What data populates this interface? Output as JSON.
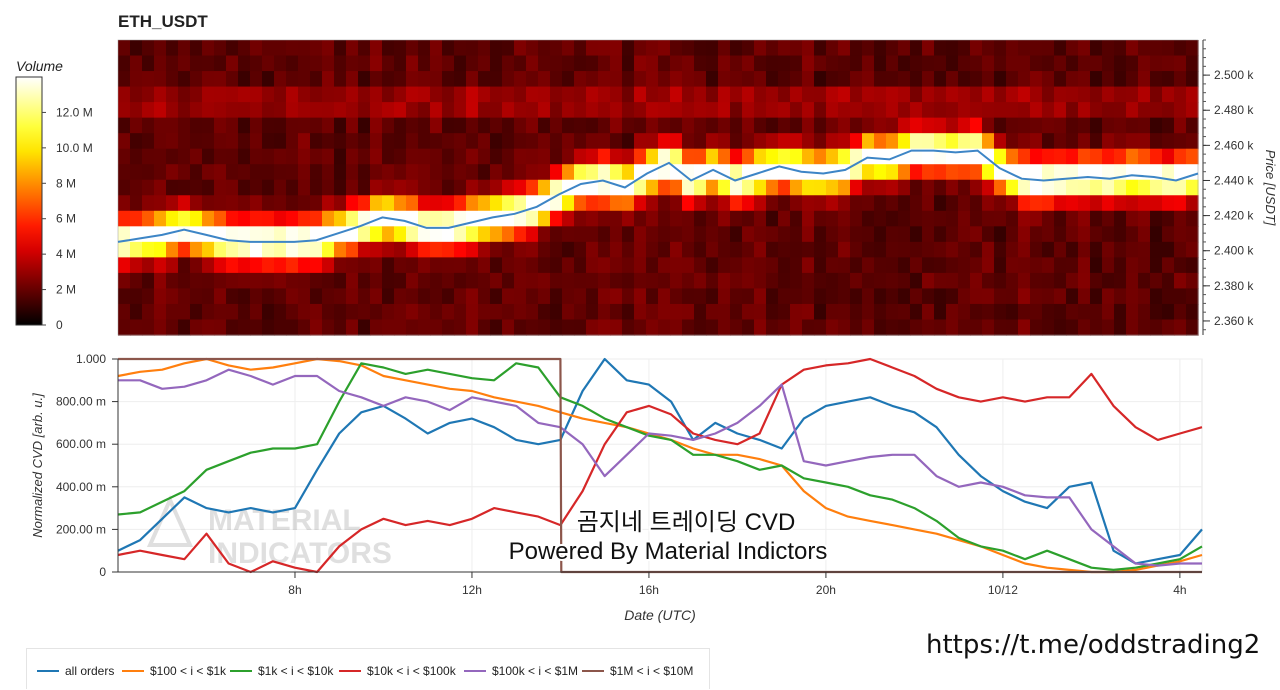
{
  "title": "ETH_USDT",
  "link_text": "https://t.me/oddstrading2",
  "colorbar": {
    "label": "Volume",
    "ticks": [
      {
        "value": 0,
        "label": "0"
      },
      {
        "value": 2,
        "label": "2 M"
      },
      {
        "value": 4,
        "label": "4 M"
      },
      {
        "value": 6,
        "label": "6 M"
      },
      {
        "value": 8,
        "label": "8 M"
      },
      {
        "value": 10,
        "label": "10.0 M"
      },
      {
        "value": 12,
        "label": "12.0 M"
      }
    ],
    "max": 14
  },
  "watermark": {
    "line1": "곰지네 트레이딩 CVD",
    "line2": "Powered By Material Indictors",
    "logo_text_1": "MATERIAL",
    "logo_text_2": "INDICATORS"
  },
  "chart_data": [
    {
      "type": "heatmap",
      "title": "ETH_USDT",
      "ylabel": "Price [USDT]",
      "ylim": [
        2352,
        2520
      ],
      "y_ticks": [
        {
          "value": 2360,
          "label": "2.360 k"
        },
        {
          "value": 2380,
          "label": "2.380 k"
        },
        {
          "value": 2400,
          "label": "2.400 k"
        },
        {
          "value": 2420,
          "label": "2.420 k"
        },
        {
          "value": 2440,
          "label": "2.440 k"
        },
        {
          "value": 2460,
          "label": "2.460 k"
        },
        {
          "value": 2480,
          "label": "2.480 k"
        },
        {
          "value": 2500,
          "label": "2.500 k"
        }
      ],
      "xlim_hours": [
        4,
        28.5
      ],
      "price_line": {
        "color": "#3d85c6",
        "x": [
          4.0,
          4.5,
          5.0,
          5.5,
          6.0,
          6.5,
          7.0,
          7.5,
          8.0,
          8.5,
          9.0,
          9.5,
          10.0,
          10.5,
          11.0,
          11.5,
          12.0,
          12.5,
          13.0,
          13.5,
          14.0,
          14.5,
          15.0,
          15.5,
          16.0,
          16.5,
          17.0,
          17.5,
          18.0,
          18.5,
          19.0,
          19.5,
          20.0,
          20.5,
          21.0,
          21.5,
          22.0,
          22.5,
          23.0,
          23.5,
          24.0,
          24.5,
          25.0,
          25.5,
          26.0,
          26.5,
          27.0,
          27.5,
          28.0,
          28.5
        ],
        "y": [
          2405,
          2407,
          2409,
          2412,
          2409,
          2406,
          2405,
          2405,
          2405,
          2406,
          2410,
          2414,
          2419,
          2417,
          2413,
          2413,
          2416,
          2419,
          2421,
          2425,
          2432,
          2438,
          2440,
          2436,
          2444,
          2450,
          2440,
          2446,
          2440,
          2444,
          2448,
          2445,
          2444,
          2446,
          2453,
          2452,
          2457,
          2457,
          2456,
          2457,
          2447,
          2441,
          2440,
          2441,
          2442,
          2441,
          2443,
          2442,
          2440,
          2444
        ]
      }
    },
    {
      "type": "line",
      "xlabel": "Date (UTC)",
      "ylabel": "Normalized CVD [arb. u.]",
      "ylim": [
        0,
        1
      ],
      "xlim_hours": [
        4,
        28.5
      ],
      "x_ticks": [
        {
          "value": 8,
          "label": "8h"
        },
        {
          "value": 12,
          "label": "12h"
        },
        {
          "value": 16,
          "label": "16h"
        },
        {
          "value": 20,
          "label": "20h"
        },
        {
          "value": 24,
          "label": "10/12"
        },
        {
          "value": 28,
          "label": "4h"
        }
      ],
      "y_ticks": [
        {
          "value": 0,
          "label": "0"
        },
        {
          "value": 0.2,
          "label": "200.00 m"
        },
        {
          "value": 0.4,
          "label": "400.00 m"
        },
        {
          "value": 0.6,
          "label": "600.00 m"
        },
        {
          "value": 0.8,
          "label": "800.00 m"
        },
        {
          "value": 1.0,
          "label": "1.000"
        }
      ],
      "series": [
        {
          "name": "all orders",
          "color": "#1f77b4",
          "x": [
            4.0,
            4.5,
            5.0,
            5.5,
            6.0,
            6.5,
            7.0,
            7.5,
            8.0,
            8.5,
            9.0,
            9.5,
            10.0,
            10.5,
            11.0,
            11.5,
            12.0,
            12.5,
            13.0,
            13.5,
            14.0,
            14.5,
            15.0,
            15.5,
            16.0,
            16.5,
            17.0,
            17.5,
            18.0,
            18.5,
            19.0,
            19.5,
            20.0,
            20.5,
            21.0,
            21.5,
            22.0,
            22.5,
            23.0,
            23.5,
            24.0,
            24.5,
            25.0,
            25.5,
            26.0,
            26.5,
            27.0,
            27.5,
            28.0,
            28.5
          ],
          "y": [
            0.1,
            0.15,
            0.25,
            0.35,
            0.3,
            0.28,
            0.3,
            0.28,
            0.3,
            0.48,
            0.65,
            0.75,
            0.78,
            0.72,
            0.65,
            0.7,
            0.72,
            0.68,
            0.62,
            0.6,
            0.62,
            0.85,
            1.0,
            0.9,
            0.88,
            0.8,
            0.62,
            0.7,
            0.65,
            0.62,
            0.58,
            0.72,
            0.78,
            0.8,
            0.82,
            0.78,
            0.75,
            0.68,
            0.55,
            0.45,
            0.38,
            0.33,
            0.3,
            0.4,
            0.42,
            0.1,
            0.04,
            0.06,
            0.08,
            0.2
          ]
        },
        {
          "name": "$100 < i < $1k",
          "color": "#ff7f0e",
          "x": [
            4.0,
            4.5,
            5.0,
            5.5,
            6.0,
            6.5,
            7.0,
            7.5,
            8.0,
            8.5,
            9.0,
            9.5,
            10.0,
            10.5,
            11.0,
            11.5,
            12.0,
            12.5,
            13.0,
            13.5,
            14.0,
            14.5,
            15.0,
            15.5,
            16.0,
            16.5,
            17.0,
            17.5,
            18.0,
            18.5,
            19.0,
            19.5,
            20.0,
            20.5,
            21.0,
            21.5,
            22.0,
            22.5,
            23.0,
            23.5,
            24.0,
            24.5,
            25.0,
            25.5,
            26.0,
            26.5,
            27.0,
            27.5,
            28.0,
            28.5
          ],
          "y": [
            0.92,
            0.94,
            0.95,
            0.98,
            1.0,
            0.97,
            0.95,
            0.96,
            0.98,
            1.0,
            0.99,
            0.97,
            0.92,
            0.9,
            0.88,
            0.86,
            0.85,
            0.82,
            0.8,
            0.78,
            0.75,
            0.72,
            0.7,
            0.68,
            0.65,
            0.62,
            0.58,
            0.55,
            0.55,
            0.53,
            0.5,
            0.38,
            0.3,
            0.26,
            0.24,
            0.22,
            0.2,
            0.18,
            0.15,
            0.12,
            0.08,
            0.04,
            0.02,
            0.01,
            0.0,
            0.0,
            0.01,
            0.03,
            0.05,
            0.08
          ]
        },
        {
          "name": "$1k < i < $10k",
          "color": "#2ca02c",
          "x": [
            4.0,
            4.5,
            5.0,
            5.5,
            6.0,
            6.5,
            7.0,
            7.5,
            8.0,
            8.5,
            9.0,
            9.5,
            10.0,
            10.5,
            11.0,
            11.5,
            12.0,
            12.5,
            13.0,
            13.5,
            14.0,
            14.5,
            15.0,
            15.5,
            16.0,
            16.5,
            17.0,
            17.5,
            18.0,
            18.5,
            19.0,
            19.5,
            20.0,
            20.5,
            21.0,
            21.5,
            22.0,
            22.5,
            23.0,
            23.5,
            24.0,
            24.5,
            25.0,
            25.5,
            26.0,
            26.5,
            27.0,
            27.5,
            28.0,
            28.5
          ],
          "y": [
            0.27,
            0.28,
            0.33,
            0.38,
            0.48,
            0.52,
            0.56,
            0.58,
            0.58,
            0.6,
            0.8,
            0.98,
            0.96,
            0.93,
            0.95,
            0.93,
            0.91,
            0.9,
            0.98,
            0.96,
            0.82,
            0.78,
            0.72,
            0.68,
            0.64,
            0.62,
            0.55,
            0.55,
            0.52,
            0.48,
            0.5,
            0.44,
            0.42,
            0.4,
            0.36,
            0.34,
            0.3,
            0.24,
            0.16,
            0.12,
            0.1,
            0.06,
            0.1,
            0.06,
            0.02,
            0.01,
            0.02,
            0.04,
            0.06,
            0.12
          ]
        },
        {
          "name": "$10k < i < $100k",
          "color": "#d62728",
          "x": [
            4.0,
            4.5,
            5.0,
            5.5,
            6.0,
            6.5,
            7.0,
            7.5,
            8.0,
            8.5,
            9.0,
            9.5,
            10.0,
            10.5,
            11.0,
            11.5,
            12.0,
            12.5,
            13.0,
            13.5,
            14.0,
            14.5,
            15.0,
            15.5,
            16.0,
            16.5,
            17.0,
            17.5,
            18.0,
            18.5,
            19.0,
            19.5,
            20.0,
            20.5,
            21.0,
            21.5,
            22.0,
            22.5,
            23.0,
            23.5,
            24.0,
            24.5,
            25.0,
            25.5,
            26.0,
            26.5,
            27.0,
            27.5,
            28.0,
            28.5
          ],
          "y": [
            0.08,
            0.1,
            0.08,
            0.06,
            0.18,
            0.04,
            0.0,
            0.05,
            0.02,
            0.0,
            0.12,
            0.2,
            0.25,
            0.22,
            0.24,
            0.22,
            0.25,
            0.3,
            0.28,
            0.26,
            0.22,
            0.38,
            0.6,
            0.75,
            0.78,
            0.74,
            0.65,
            0.62,
            0.6,
            0.65,
            0.88,
            0.95,
            0.97,
            0.98,
            1.0,
            0.96,
            0.92,
            0.86,
            0.82,
            0.8,
            0.82,
            0.8,
            0.82,
            0.82,
            0.93,
            0.78,
            0.68,
            0.62,
            0.65,
            0.68
          ]
        },
        {
          "name": "$100k < i < $1M",
          "color": "#9467bd",
          "x": [
            4.0,
            4.5,
            5.0,
            5.5,
            6.0,
            6.5,
            7.0,
            7.5,
            8.0,
            8.5,
            9.0,
            9.5,
            10.0,
            10.5,
            11.0,
            11.5,
            12.0,
            12.5,
            13.0,
            13.5,
            14.0,
            14.5,
            15.0,
            15.5,
            16.0,
            16.5,
            17.0,
            17.5,
            18.0,
            18.5,
            19.0,
            19.5,
            20.0,
            20.5,
            21.0,
            21.5,
            22.0,
            22.5,
            23.0,
            23.5,
            24.0,
            24.5,
            25.0,
            25.5,
            26.0,
            26.5,
            27.0,
            27.5,
            28.0,
            28.5
          ],
          "y": [
            0.9,
            0.9,
            0.86,
            0.87,
            0.9,
            0.95,
            0.92,
            0.88,
            0.92,
            0.92,
            0.85,
            0.82,
            0.78,
            0.82,
            0.8,
            0.76,
            0.82,
            0.8,
            0.78,
            0.7,
            0.68,
            0.6,
            0.45,
            0.55,
            0.65,
            0.64,
            0.62,
            0.65,
            0.7,
            0.78,
            0.88,
            0.52,
            0.5,
            0.52,
            0.54,
            0.55,
            0.55,
            0.45,
            0.4,
            0.42,
            0.4,
            0.36,
            0.35,
            0.35,
            0.2,
            0.12,
            0.04,
            0.03,
            0.04,
            0.04
          ]
        },
        {
          "name": "$1M < i < $10M",
          "color": "#8c564b",
          "x": [
            4.0,
            5.0,
            6.0,
            7.0,
            8.0,
            9.0,
            10.0,
            11.0,
            12.0,
            13.0,
            14.0,
            14.02,
            15.0,
            16.0,
            18.0,
            20.0,
            22.0,
            24.0,
            26.0,
            28.0,
            28.5
          ],
          "y": [
            1.0,
            1.0,
            1.0,
            1.0,
            1.0,
            1.0,
            1.0,
            1.0,
            1.0,
            1.0,
            1.0,
            0.0,
            0.0,
            0.0,
            0.0,
            0.0,
            0.0,
            0.0,
            0.0,
            0.0,
            0.0
          ]
        }
      ]
    }
  ]
}
